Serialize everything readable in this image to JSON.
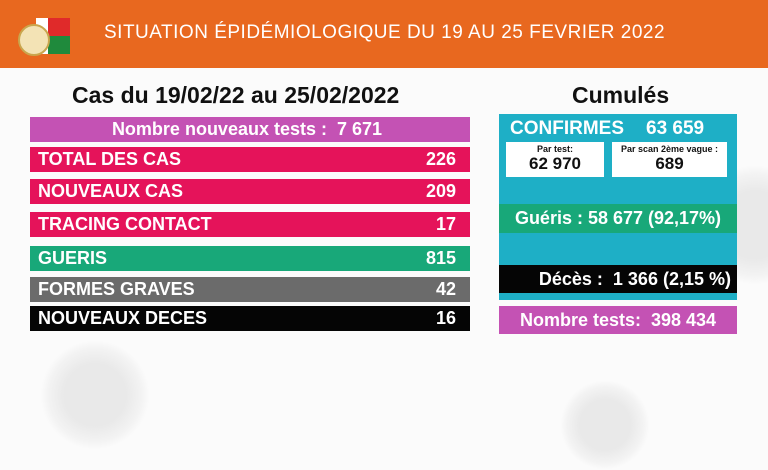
{
  "header": {
    "title": "SITUATION ÉPIDÉMIOLOGIQUE DU 19 AU 25 FEVRIER 2022"
  },
  "left": {
    "title": "Cas du 19/02/22 au 25/02/2022",
    "rows": [
      {
        "label": "Nombre nouveaux tests :",
        "value": "7 671",
        "color": "#c452b4"
      },
      {
        "label": "TOTAL DES CAS",
        "value": "226",
        "color": "#e5135a"
      },
      {
        "label": "NOUVEAUX CAS",
        "value": "209",
        "color": "#e5135a"
      },
      {
        "label": "TRACING CONTACT",
        "value": "17",
        "color": "#e5135a"
      },
      {
        "label": "GUERIS",
        "value": "815",
        "color": "#18a879"
      },
      {
        "label": "FORMES GRAVES",
        "value": "42",
        "color": "#6b6b6b"
      },
      {
        "label": "NOUVEAUX DECES",
        "value": "16",
        "color": "#050505"
      }
    ]
  },
  "right": {
    "title": "Cumulés",
    "confirmes_label": "CONFIRMES",
    "confirmes_value": "63 659",
    "par_test_label": "Par test:",
    "par_test_value": "62 970",
    "par_scan_label": "Par scan 2ème vague :",
    "par_scan_value": "689",
    "gueris": "Guéris : 58 677 (92,17%)",
    "deces": "Décès :  1 366 (2,15 %)",
    "tests": "Nombre tests:  398 434"
  }
}
